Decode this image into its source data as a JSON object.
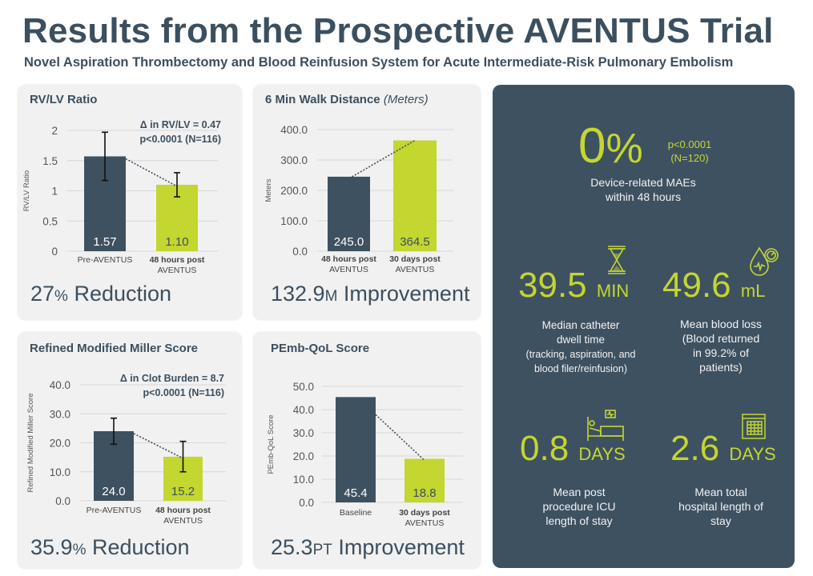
{
  "header": {
    "title": "Results from the Prospective AVENTUS Trial",
    "subtitle": "Novel Aspiration Thrombectomy and Blood Reinfusion System for Acute Intermediate-Risk Pulmonary Embolism"
  },
  "colors": {
    "dark": "#3e5161",
    "lime": "#c4d630",
    "card_bg": "#f1f1f1",
    "text": "#3c4f5f"
  },
  "chart_data": [
    {
      "id": "rvlv",
      "type": "bar",
      "title": "RV/LV Ratio",
      "title_italic": "",
      "ylabel": "RV/LV Ratio",
      "xlabel": "",
      "categories": [
        "Pre-AVENTUS",
        "48 hours post AVENTUS"
      ],
      "category_lines": [
        [
          "Pre-AVENTUS"
        ],
        [
          "48 hours post",
          "AVENTUS"
        ]
      ],
      "values": [
        1.57,
        1.1
      ],
      "value_labels": [
        "1.57",
        "1.10"
      ],
      "error_bars": [
        [
          1.17,
          1.97
        ],
        [
          0.9,
          1.3
        ]
      ],
      "ylim": [
        0,
        2
      ],
      "yticks": [
        0,
        0.5,
        1,
        1.5,
        2
      ],
      "ytick_labels": [
        "0",
        "0.5",
        "1",
        "1.5",
        "2"
      ],
      "grid": true,
      "annotation": [
        "Δ in RV/LV = 0.47",
        "p<0.0001 (N=116)"
      ],
      "headline_value": "27",
      "headline_unit": "%",
      "headline_text": " Reduction"
    },
    {
      "id": "walk",
      "type": "bar",
      "title": "6 Min Walk Distance ",
      "title_italic": "(Meters)",
      "ylabel": "Meters",
      "xlabel": "",
      "categories": [
        "48 hours post AVENTUS",
        "30 days post AVENTUS"
      ],
      "category_lines": [
        [
          "48 hours post",
          "AVENTUS"
        ],
        [
          "30 days post",
          "AVENTUS"
        ]
      ],
      "values": [
        245.0,
        364.5
      ],
      "value_labels": [
        "245.0",
        "364.5"
      ],
      "error_bars": null,
      "ylim": [
        0,
        400
      ],
      "yticks": [
        0,
        100,
        200,
        300,
        400
      ],
      "ytick_labels": [
        "0.0",
        "100.0",
        "200.0",
        "300.0",
        "400.0"
      ],
      "grid": true,
      "annotation": [],
      "headline_value": "132.9",
      "headline_unit": "M",
      "headline_text": " Improvement"
    },
    {
      "id": "miller",
      "type": "bar",
      "title": "Refined Modified Miller Score",
      "title_italic": "",
      "ylabel": "Refined Modified Miller Score",
      "xlabel": "",
      "categories": [
        "Pre-AVENTUS",
        "48 hours post AVENTUS"
      ],
      "category_lines": [
        [
          "Pre-AVENTUS"
        ],
        [
          "48 hours post",
          "AVENTUS"
        ]
      ],
      "values": [
        24.0,
        15.2
      ],
      "value_labels": [
        "24.0",
        "15.2"
      ],
      "error_bars": [
        [
          19.5,
          28.5
        ],
        [
          10.0,
          20.5
        ]
      ],
      "ylim": [
        0,
        40
      ],
      "yticks": [
        0,
        10,
        20,
        30,
        40
      ],
      "ytick_labels": [
        "0.0",
        "10.0",
        "20.0",
        "30.0",
        "40.0"
      ],
      "grid": true,
      "annotation": [
        "Δ in Clot Burden = 8.7",
        "p<0.0001 (N=116)"
      ],
      "headline_value": "35.9",
      "headline_unit": "%",
      "headline_text": " Reduction"
    },
    {
      "id": "qol",
      "type": "bar",
      "title": "PEmb-QoL Score",
      "title_italic": "",
      "ylabel": "PEmb-QoL Score",
      "xlabel": "",
      "categories": [
        "Baseline",
        "30 days post AVENTUS"
      ],
      "category_lines": [
        [
          "Baseline"
        ],
        [
          "30 days post",
          "AVENTUS"
        ]
      ],
      "values": [
        45.4,
        18.8
      ],
      "value_labels": [
        "45.4",
        "18.8"
      ],
      "error_bars": null,
      "ylim": [
        0,
        50
      ],
      "yticks": [
        0,
        10,
        20,
        30,
        40,
        50
      ],
      "ytick_labels": [
        "0.0",
        "10.0",
        "20.0",
        "30.0",
        "40.0",
        "50.0"
      ],
      "grid": true,
      "annotation": [],
      "headline_value": "25.3",
      "headline_unit": "PT",
      "headline_text": " Improvement"
    }
  ],
  "panel": {
    "mae": {
      "value": "0",
      "unit": "%",
      "p_value": "p<0.0001",
      "n": "(N=120)",
      "desc_lines": [
        "Device-related MAEs",
        "within 48 hours"
      ]
    },
    "stats": [
      {
        "icon": "hourglass-icon",
        "value": "39.5",
        "unit": "MIN",
        "desc_lines": [
          "Median catheter",
          "dwell time",
          "(tracking, aspiration, and",
          "blood filer/reinfusion)"
        ]
      },
      {
        "icon": "blood-drop-gauge-icon",
        "value": "49.6",
        "unit": "mL",
        "desc_lines": [
          "Mean blood loss",
          "(Blood returned",
          "in 99.2% of",
          "patients)"
        ]
      },
      {
        "icon": "hospital-bed-icon",
        "value": "0.8",
        "unit": "DAYS",
        "desc_lines": [
          "Mean post",
          "procedure ICU",
          "length of stay"
        ]
      },
      {
        "icon": "calendar-icon",
        "value": "2.6",
        "unit": "DAYS",
        "desc_lines": [
          "Mean total",
          "hospital length of",
          "stay"
        ]
      }
    ]
  }
}
